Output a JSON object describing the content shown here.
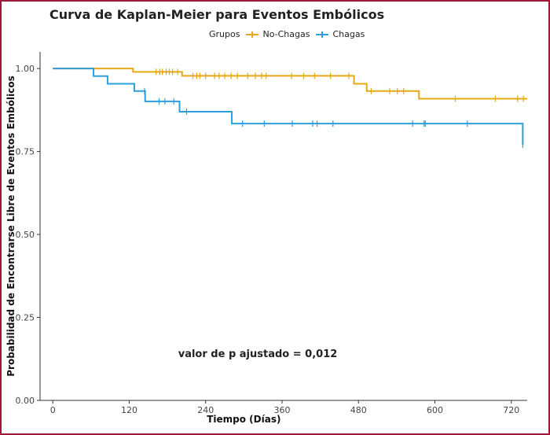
{
  "chart_data": {
    "type": "line",
    "subtype": "kaplan-meier step",
    "title": "Curva de Kaplan-Meier para Eventos Embólicos",
    "xlabel": "Tiempo (Días)",
    "ylabel": "Probabilidad de Encontrarse Libre de Eventos Embólicos",
    "xlim": [
      -20,
      745
    ],
    "ylim": [
      0,
      1.05
    ],
    "x_ticks": [
      0,
      120,
      240,
      360,
      480,
      600,
      720
    ],
    "y_ticks": [
      0.0,
      0.25,
      0.5,
      0.75,
      1.0
    ],
    "x_tick_labels": [
      "0",
      "120",
      "240",
      "360",
      "480",
      "600",
      "720"
    ],
    "y_tick_labels": [
      "0.00",
      "0.25",
      "0.50",
      "0.75",
      "1.00"
    ],
    "grid": false,
    "legend": {
      "title": "Grupos",
      "position": "top"
    },
    "annotation": "valor de p ajustado = 0,012",
    "series": [
      {
        "name": "No-Chagas",
        "color": "#e6a817",
        "steps": [
          [
            0,
            1.0
          ],
          [
            126,
            0.99
          ],
          [
            203,
            0.978
          ],
          [
            473,
            0.954
          ],
          [
            493,
            0.932
          ],
          [
            575,
            0.909
          ],
          [
            745,
            0.909
          ]
        ],
        "censor": [
          162,
          168,
          172,
          178,
          183,
          188,
          196,
          220,
          226,
          231,
          240,
          254,
          261,
          270,
          280,
          290,
          306,
          318,
          328,
          335,
          375,
          394,
          411,
          436,
          465,
          500,
          529,
          541,
          551,
          632,
          695,
          730,
          739
        ]
      },
      {
        "name": "Chagas",
        "color": "#2c9fdc",
        "steps": [
          [
            0,
            1.0
          ],
          [
            64,
            0.977
          ],
          [
            86,
            0.954
          ],
          [
            128,
            0.932
          ],
          [
            145,
            0.901
          ],
          [
            199,
            0.87
          ],
          [
            281,
            0.834
          ],
          [
            738,
            0.77
          ]
        ],
        "censor": [
          144,
          167,
          176,
          190,
          210,
          298,
          332,
          376,
          408,
          415,
          440,
          565,
          583,
          585,
          651,
          738
        ]
      }
    ]
  }
}
